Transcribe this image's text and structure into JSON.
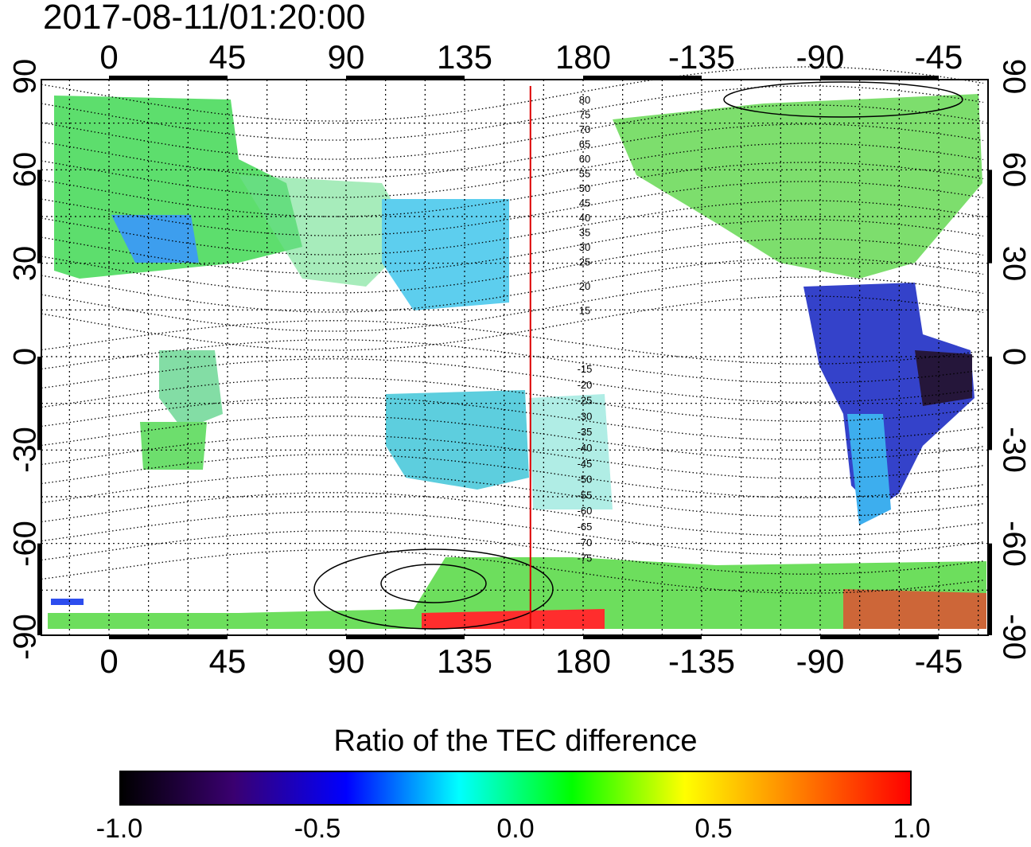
{
  "timestamp": "2017-08-11/01:20:00",
  "map": {
    "top_lon_labels": [
      "0",
      "45",
      "90",
      "135",
      "180",
      "-135",
      "-90",
      "-45"
    ],
    "bottom_lon_labels": [
      "0",
      "45",
      "90",
      "135",
      "180",
      "-135",
      "-90",
      "-45"
    ],
    "left_lat_labels": [
      "90",
      "60",
      "30",
      "0",
      "-30",
      "-60",
      "-90"
    ],
    "right_lat_labels": [
      "90",
      "60",
      "30",
      "0",
      "-30",
      "-60",
      "-90"
    ],
    "contour_labels_north": [
      "80",
      "75",
      "70",
      "65",
      "60",
      "55",
      "50",
      "45",
      "40",
      "35",
      "30",
      "25",
      "20",
      "15"
    ],
    "contour_labels_south": [
      "-15",
      "-20",
      "-25",
      "-30",
      "-35",
      "-40",
      "-45",
      "-50",
      "-55",
      "-60",
      "-65",
      "-70",
      "-75"
    ],
    "meridian_marker_lon": 160,
    "colors": {
      "marker_line": "#dd0000",
      "grid": "#000000"
    }
  },
  "colorbar": {
    "title": "Ratio of the TEC difference",
    "tick_labels": [
      "-1.0",
      "-0.5",
      "0.0",
      "0.5",
      "1.0"
    ],
    "range": [
      -1.0,
      1.0
    ],
    "colors": [
      "#000000",
      "#3a0070",
      "#0000ff",
      "#00ffff",
      "#00ff00",
      "#ffff00",
      "#ff8000",
      "#ff0000"
    ]
  }
}
